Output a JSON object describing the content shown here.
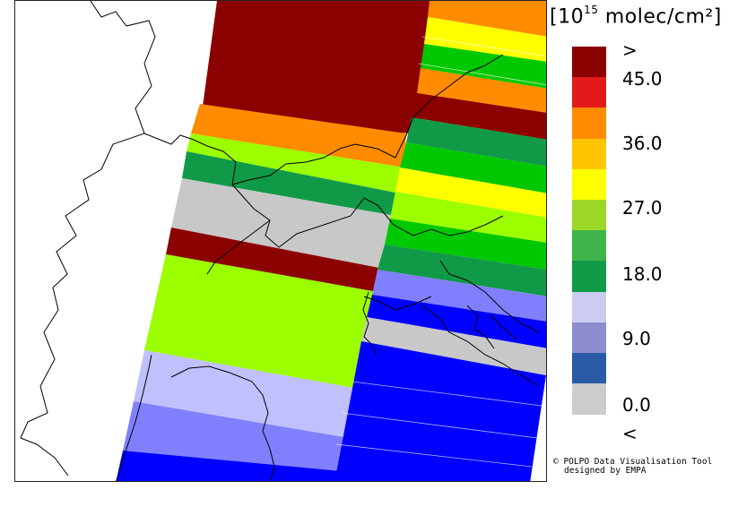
{
  "legend": {
    "unit_prefix": "[10",
    "unit_exp": "15",
    "unit_suffix": " molec/cm²]",
    "ticks": [
      ">",
      "45.0",
      "36.0",
      "27.0",
      "18.0",
      "9.0",
      "0.0",
      "<"
    ],
    "scale": [
      {
        "label": "above max",
        "color": "#8b0000"
      },
      {
        "label": "40.5–45.0",
        "color": "#e31a1a"
      },
      {
        "label": "36.0–40.5",
        "color": "#ff8c00"
      },
      {
        "label": "31.5–36.0",
        "color": "#ffc400"
      },
      {
        "label": "27.0–31.5",
        "color": "#ffff00"
      },
      {
        "label": "22.5–27.0",
        "color": "#9cd627"
      },
      {
        "label": "18.0–22.5",
        "color": "#3fb44a"
      },
      {
        "label": "13.5–18.0",
        "color": "#119a48"
      },
      {
        "label": "9.0–13.5",
        "color": "#ccccf2"
      },
      {
        "label": "4.5–9.0",
        "color": "#8c8ccf"
      },
      {
        "label": "0.0–4.5",
        "color": "#2b5aa6"
      },
      {
        "label": "below min",
        "color": "#cccccc"
      }
    ]
  },
  "credit": {
    "line1": "© POLPO Data Visualisation Tool",
    "line2": "designed by EMPA"
  },
  "map": {
    "swath_colors": [
      "#8b0000",
      "#ff8c00",
      "#ffff00",
      "#9cff00",
      "#109a48",
      "#00c800",
      "#c8c8c8",
      "#8080ff",
      "#0000ff",
      "#c0c0ff"
    ]
  }
}
